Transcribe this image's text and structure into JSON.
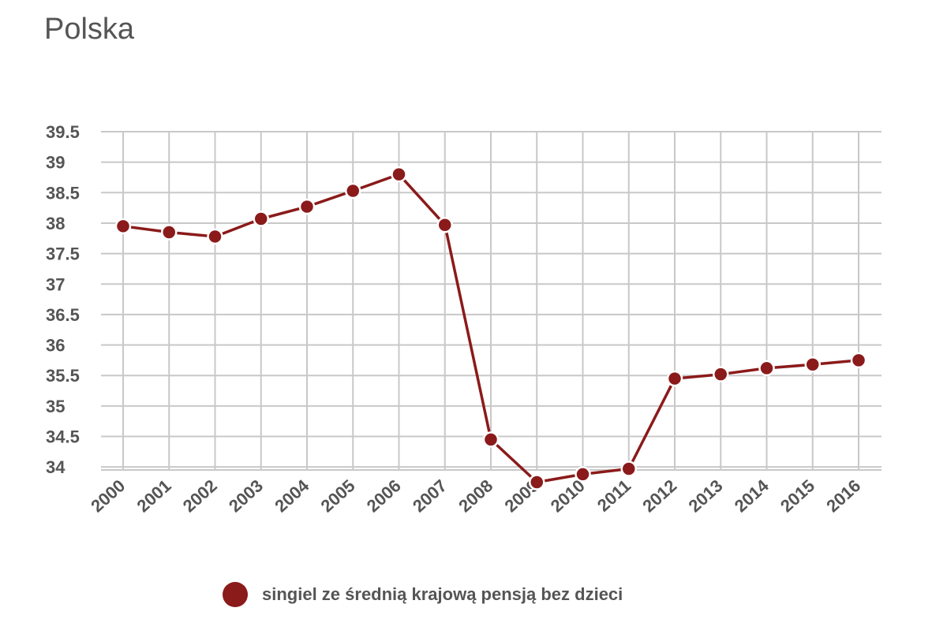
{
  "title": "Polska",
  "chart_data": {
    "type": "line",
    "title": "Polska",
    "xlabel": "",
    "ylabel": "",
    "x": [
      "2000",
      "2001",
      "2002",
      "2003",
      "2004",
      "2005",
      "2006",
      "2007",
      "2008",
      "2009",
      "2010",
      "2011",
      "2012",
      "2013",
      "2014",
      "2015",
      "2016"
    ],
    "series": [
      {
        "name": "singiel ze średnią krajową pensją bez dzieci",
        "values": [
          37.95,
          37.85,
          37.78,
          38.07,
          38.27,
          38.53,
          38.8,
          37.97,
          34.45,
          33.75,
          33.88,
          33.97,
          35.45,
          35.52,
          35.62,
          35.68,
          35.75
        ]
      }
    ],
    "y_ticks": [
      "39.5",
      "39",
      "38.5",
      "38",
      "37.5",
      "37",
      "36.5",
      "36",
      "35.5",
      "35",
      "34.5",
      "34"
    ],
    "ylim": [
      33.75,
      39.5
    ],
    "grid": true,
    "legend_position": "bottom",
    "colors": {
      "series": "#8b1a1a",
      "grid": "#c8c8c8",
      "text": "#555555"
    }
  }
}
